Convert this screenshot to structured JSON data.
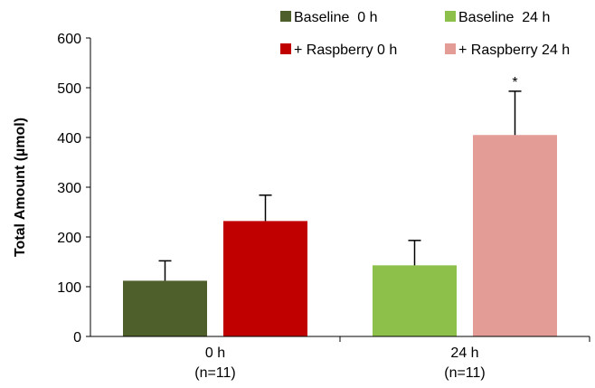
{
  "chart_data": {
    "type": "bar",
    "title": "",
    "xlabel": "",
    "ylabel": "Total Amount (µmol)",
    "ylim": [
      0,
      600
    ],
    "yticks": [
      0,
      100,
      200,
      300,
      400,
      500,
      600
    ],
    "grid": false,
    "legend_position": "top",
    "categories": [
      {
        "label": "0 h",
        "sublabel": "(n=11)"
      },
      {
        "label": "24 h",
        "sublabel": "(n=11)"
      }
    ],
    "series": [
      {
        "name": "Baseline  0 h",
        "color": "#4e5f2b",
        "values": [
          112,
          null
        ],
        "errors": [
          40,
          null
        ]
      },
      {
        "name": "+ Raspberry 0 h",
        "color": "#c00000",
        "values": [
          232,
          null
        ],
        "errors": [
          52,
          null
        ]
      },
      {
        "name": "Baseline  24 h",
        "color": "#8cc04b",
        "values": [
          null,
          143
        ],
        "errors": [
          null,
          50
        ]
      },
      {
        "name": "+ Raspberry 24 h",
        "color": "#e39c96",
        "values": [
          null,
          405
        ],
        "errors": [
          null,
          88
        ]
      }
    ],
    "annotations": [
      {
        "text": "*",
        "series": 3,
        "category": 1
      }
    ]
  }
}
